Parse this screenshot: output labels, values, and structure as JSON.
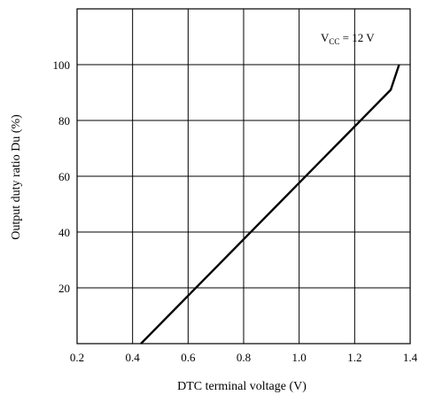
{
  "chart_data": {
    "type": "line",
    "title": "",
    "xlabel": "DTC terminal voltage  (V)",
    "ylabel": "Output duty ratio  Du  (%)",
    "xlim": [
      0.2,
      1.4
    ],
    "ylim": [
      0,
      120
    ],
    "x_ticks": [
      "0.2",
      "0.4",
      "0.6",
      "0.8",
      "1.0",
      "1.2",
      "1.4"
    ],
    "y_ticks": [
      "20",
      "40",
      "60",
      "80",
      "100"
    ],
    "grid": true,
    "annotation": {
      "main": "V",
      "sub": "CC",
      "rest": " = 12 V"
    },
    "series": [
      {
        "x": [
          0.43,
          1.33,
          1.36
        ],
        "y": [
          0,
          91,
          100
        ]
      }
    ]
  }
}
